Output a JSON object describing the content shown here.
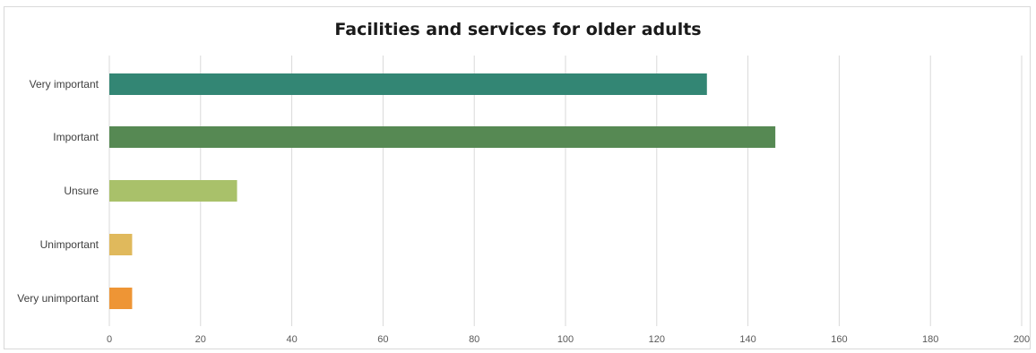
{
  "chart_data": {
    "type": "bar",
    "orientation": "horizontal",
    "title": "Facilities and services for older adults",
    "xlabel": "",
    "ylabel": "",
    "categories": [
      "Very important",
      "Important",
      "Unsure",
      "Unimportant",
      "Very unimportant"
    ],
    "values": [
      131,
      146,
      28,
      5,
      5
    ],
    "colors": [
      "#338674",
      "#568953",
      "#a9c16a",
      "#e0b95c",
      "#ee9535"
    ],
    "xlim": [
      0,
      200
    ],
    "xticks": [
      0,
      20,
      40,
      60,
      80,
      100,
      120,
      140,
      160,
      180,
      200
    ],
    "grid": true,
    "legend": "none"
  }
}
